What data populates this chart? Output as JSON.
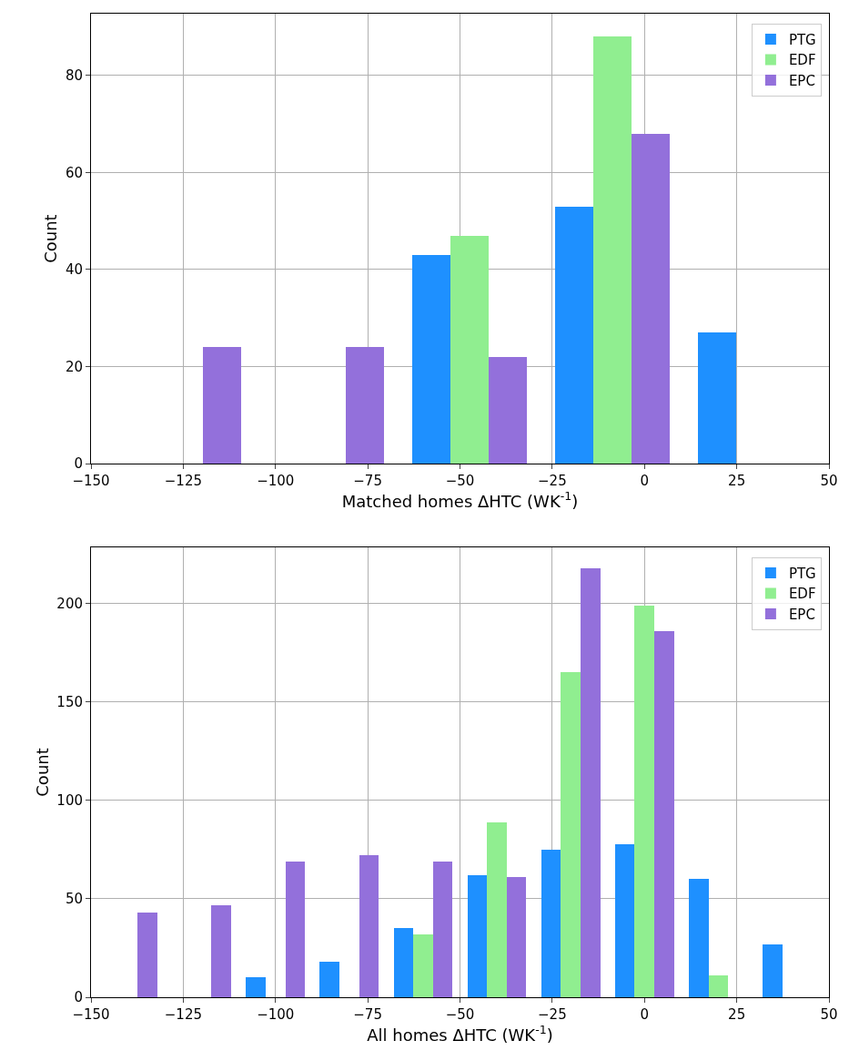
{
  "chart_data": [
    {
      "type": "histogram",
      "xlabel": "Matched homes ΔHTC (WK$^{-1}$)",
      "ylabel": "Count",
      "bins": [
        -144.1,
        -105.4,
        -66.7,
        -28.0,
        10.7,
        49.4
      ],
      "series": [
        {
          "name": "PTG",
          "color": "#1e90ff",
          "values": [
            0,
            0,
            43,
            53,
            27
          ]
        },
        {
          "name": "EDF",
          "color": "#90ee90",
          "values": [
            0,
            0,
            47,
            88,
            0
          ]
        },
        {
          "name": "EPC",
          "color": "#9370db",
          "values": [
            24,
            24,
            22,
            68,
            0
          ]
        }
      ],
      "xlim": [
        -150,
        50
      ],
      "xticks": [
        {
          "value": -150,
          "label": "−150"
        },
        {
          "value": -125,
          "label": "−125"
        },
        {
          "value": -100,
          "label": "−100"
        },
        {
          "value": -75,
          "label": "−75"
        },
        {
          "value": -50,
          "label": "−50"
        },
        {
          "value": -25,
          "label": "−25"
        },
        0,
        25,
        50
      ],
      "ylim": [
        0,
        92.7
      ],
      "yticks": [
        0,
        20,
        40,
        60,
        80
      ],
      "grid": true,
      "legend": "top right"
    },
    {
      "type": "histogram",
      "xlabel": "All homes ΔHTC (WK$^{-1}$)",
      "ylabel": "Count",
      "bins": [
        -150,
        -130,
        -110,
        -90,
        -70,
        -50,
        -30,
        -10,
        10,
        30,
        50
      ],
      "series": [
        {
          "name": "PTG",
          "color": "#1e90ff",
          "values": [
            0,
            0,
            10,
            18,
            35,
            62,
            75,
            78,
            60,
            27
          ]
        },
        {
          "name": "EDF",
          "color": "#90ee90",
          "values": [
            0,
            0,
            0,
            0,
            32,
            89,
            165,
            199,
            11,
            0
          ]
        },
        {
          "name": "EPC",
          "color": "#9370db",
          "values": [
            43,
            47,
            69,
            72,
            69,
            61,
            218,
            186,
            0,
            0
          ]
        }
      ],
      "xlim": [
        -150,
        50
      ],
      "xticks": [
        {
          "value": -150,
          "label": "−150"
        },
        {
          "value": -125,
          "label": "−125"
        },
        {
          "value": -100,
          "label": "−100"
        },
        {
          "value": -75,
          "label": "−75"
        },
        {
          "value": -50,
          "label": "−50"
        },
        {
          "value": -25,
          "label": "−25"
        },
        0,
        25,
        50
      ],
      "ylim": [
        0,
        228.6
      ],
      "yticks": [
        0,
        50,
        100,
        150,
        200
      ],
      "grid": true,
      "legend": "top right"
    }
  ]
}
